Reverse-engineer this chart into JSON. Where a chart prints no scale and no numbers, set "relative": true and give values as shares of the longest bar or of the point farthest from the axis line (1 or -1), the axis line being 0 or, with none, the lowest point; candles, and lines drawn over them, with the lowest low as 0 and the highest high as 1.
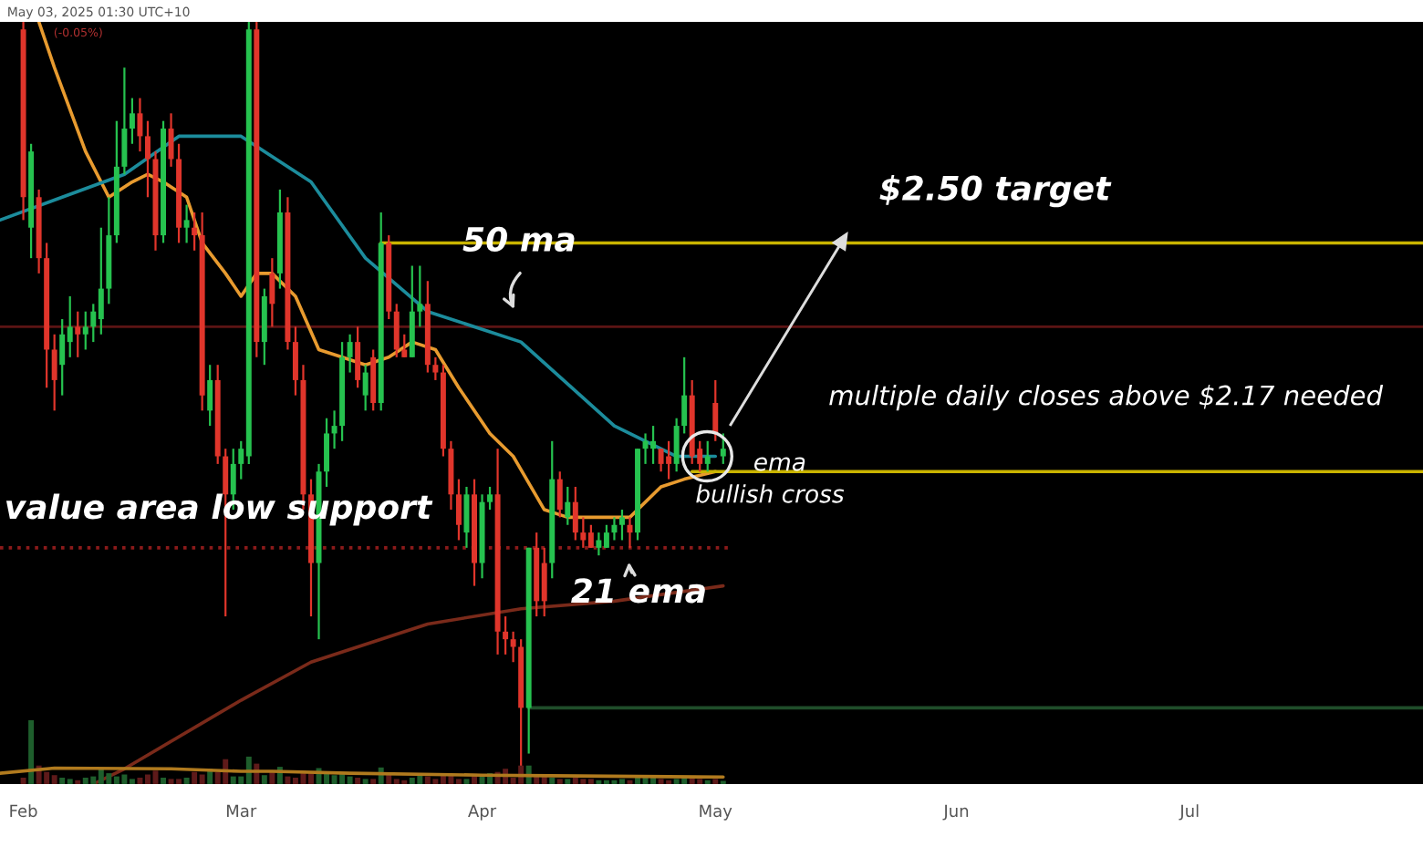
{
  "chart_data": [
    {
      "type": "candlestick",
      "x": [
        "2025-02-01",
        "2025-02-02",
        "2025-02-03",
        "2025-02-04",
        "2025-02-05",
        "2025-02-06",
        "2025-02-07",
        "2025-02-08",
        "2025-02-09",
        "2025-02-10",
        "2025-02-11",
        "2025-02-12",
        "2025-02-13",
        "2025-02-14",
        "2025-02-15",
        "2025-02-16",
        "2025-02-17",
        "2025-02-18",
        "2025-02-19",
        "2025-02-20",
        "2025-02-21",
        "2025-02-22",
        "2025-02-23",
        "2025-02-24",
        "2025-02-25",
        "2025-02-26",
        "2025-02-27",
        "2025-02-28",
        "2025-03-01",
        "2025-03-02",
        "2025-03-03",
        "2025-03-04",
        "2025-03-05",
        "2025-03-06",
        "2025-03-07",
        "2025-03-08",
        "2025-03-09",
        "2025-03-10",
        "2025-03-11",
        "2025-03-12",
        "2025-03-13",
        "2025-03-14",
        "2025-03-15",
        "2025-03-16",
        "2025-03-17",
        "2025-03-18",
        "2025-03-19",
        "2025-03-20",
        "2025-03-21",
        "2025-03-22",
        "2025-03-23",
        "2025-03-24",
        "2025-03-25",
        "2025-03-26",
        "2025-03-27",
        "2025-03-28",
        "2025-03-29",
        "2025-03-30",
        "2025-03-31",
        "2025-04-01",
        "2025-04-02",
        "2025-04-03",
        "2025-04-04",
        "2025-04-05",
        "2025-04-06",
        "2025-04-07",
        "2025-04-08",
        "2025-04-09",
        "2025-04-10",
        "2025-04-11",
        "2025-04-12",
        "2025-04-13",
        "2025-04-14",
        "2025-04-15",
        "2025-04-16",
        "2025-04-17",
        "2025-04-18",
        "2025-04-19",
        "2025-04-20",
        "2025-04-21",
        "2025-04-22",
        "2025-04-23",
        "2025-04-24",
        "2025-04-25",
        "2025-04-26",
        "2025-04-27",
        "2025-04-28",
        "2025-04-29",
        "2025-04-30",
        "2025-05-01",
        "2025-05-02"
      ],
      "relative": true,
      "ohlc": [
        [
          0.99,
          1,
          0.74,
          0.77
        ],
        [
          0.73,
          0.84,
          0.69,
          0.83
        ],
        [
          0.77,
          0.78,
          0.67,
          0.69
        ],
        [
          0.69,
          0.71,
          0.52,
          0.57
        ],
        [
          0.57,
          0.59,
          0.49,
          0.53
        ],
        [
          0.55,
          0.61,
          0.51,
          0.59
        ],
        [
          0.58,
          0.64,
          0.56,
          0.6
        ],
        [
          0.6,
          0.62,
          0.56,
          0.59
        ],
        [
          0.59,
          0.62,
          0.57,
          0.6
        ],
        [
          0.6,
          0.63,
          0.58,
          0.62
        ],
        [
          0.61,
          0.73,
          0.59,
          0.65
        ],
        [
          0.65,
          0.77,
          0.63,
          0.72
        ],
        [
          0.72,
          0.87,
          0.71,
          0.81
        ],
        [
          0.81,
          0.94,
          0.8,
          0.86
        ],
        [
          0.86,
          0.9,
          0.84,
          0.88
        ],
        [
          0.88,
          0.9,
          0.83,
          0.85
        ],
        [
          0.85,
          0.87,
          0.77,
          0.82
        ],
        [
          0.82,
          0.83,
          0.7,
          0.72
        ],
        [
          0.72,
          0.87,
          0.71,
          0.86
        ],
        [
          0.86,
          0.88,
          0.81,
          0.82
        ],
        [
          0.82,
          0.84,
          0.71,
          0.73
        ],
        [
          0.73,
          0.76,
          0.71,
          0.74
        ],
        [
          0.73,
          0.75,
          0.7,
          0.72
        ],
        [
          0.72,
          0.75,
          0.49,
          0.51
        ],
        [
          0.49,
          0.55,
          0.47,
          0.53
        ],
        [
          0.53,
          0.55,
          0.42,
          0.43
        ],
        [
          0.43,
          0.44,
          0.22,
          0.38
        ],
        [
          0.38,
          0.44,
          0.36,
          0.42
        ],
        [
          0.42,
          0.45,
          0.4,
          0.44
        ],
        [
          0.43,
          1,
          0.42,
          0.99
        ],
        [
          0.99,
          1,
          0.56,
          0.58
        ],
        [
          0.58,
          0.65,
          0.55,
          0.64
        ],
        [
          0.67,
          0.69,
          0.6,
          0.63
        ],
        [
          0.67,
          0.78,
          0.65,
          0.75
        ],
        [
          0.75,
          0.77,
          0.57,
          0.58
        ],
        [
          0.58,
          0.6,
          0.51,
          0.53
        ],
        [
          0.53,
          0.55,
          0.36,
          0.38
        ],
        [
          0.38,
          0.4,
          0.22,
          0.29
        ],
        [
          0.29,
          0.42,
          0.19,
          0.41
        ],
        [
          0.41,
          0.48,
          0.39,
          0.46
        ],
        [
          0.46,
          0.49,
          0.44,
          0.47
        ],
        [
          0.47,
          0.58,
          0.45,
          0.56
        ],
        [
          0.56,
          0.59,
          0.54,
          0.58
        ],
        [
          0.58,
          0.6,
          0.52,
          0.53
        ],
        [
          0.51,
          0.55,
          0.49,
          0.54
        ],
        [
          0.56,
          0.57,
          0.49,
          0.5
        ],
        [
          0.5,
          0.75,
          0.49,
          0.71
        ],
        [
          0.71,
          0.72,
          0.61,
          0.62
        ],
        [
          0.62,
          0.63,
          0.56,
          0.57
        ],
        [
          0.57,
          0.59,
          0.56,
          0.56
        ],
        [
          0.56,
          0.68,
          0.56,
          0.62
        ],
        [
          0.62,
          0.68,
          0.6,
          0.63
        ],
        [
          0.63,
          0.66,
          0.54,
          0.55
        ],
        [
          0.55,
          0.56,
          0.53,
          0.54
        ],
        [
          0.54,
          0.55,
          0.43,
          0.44
        ],
        [
          0.44,
          0.45,
          0.36,
          0.38
        ],
        [
          0.38,
          0.4,
          0.32,
          0.34
        ],
        [
          0.33,
          0.39,
          0.31,
          0.38
        ],
        [
          0.38,
          0.4,
          0.26,
          0.29
        ],
        [
          0.29,
          0.38,
          0.27,
          0.37
        ],
        [
          0.37,
          0.39,
          0.36,
          0.38
        ],
        [
          0.38,
          0.44,
          0.17,
          0.2
        ],
        [
          0.2,
          0.22,
          0.17,
          0.19
        ],
        [
          0.19,
          0.2,
          0.16,
          0.18
        ],
        [
          0.18,
          0.19,
          0,
          0.1
        ],
        [
          0.1,
          0.31,
          0.04,
          0.31
        ],
        [
          0.31,
          0.33,
          0.22,
          0.24
        ],
        [
          0.29,
          0.31,
          0.22,
          0.24
        ],
        [
          0.29,
          0.45,
          0.27,
          0.4
        ],
        [
          0.4,
          0.41,
          0.35,
          0.36
        ],
        [
          0.35,
          0.39,
          0.34,
          0.37
        ],
        [
          0.37,
          0.39,
          0.32,
          0.33
        ],
        [
          0.33,
          0.35,
          0.31,
          0.32
        ],
        [
          0.33,
          0.34,
          0.31,
          0.31
        ],
        [
          0.31,
          0.33,
          0.3,
          0.32
        ],
        [
          0.31,
          0.34,
          0.31,
          0.33
        ],
        [
          0.33,
          0.35,
          0.32,
          0.34
        ],
        [
          0.34,
          0.36,
          0.32,
          0.35
        ],
        [
          0.34,
          0.35,
          0.31,
          0.33
        ],
        [
          0.33,
          0.44,
          0.32,
          0.44
        ],
        [
          0.44,
          0.46,
          0.42,
          0.45
        ],
        [
          0.44,
          0.47,
          0.42,
          0.45
        ],
        [
          0.44,
          0.44,
          0.41,
          0.42
        ],
        [
          0.43,
          0.45,
          0.4,
          0.42
        ],
        [
          0.42,
          0.48,
          0.41,
          0.47
        ],
        [
          0.47,
          0.56,
          0.46,
          0.51
        ],
        [
          0.51,
          0.53,
          0.42,
          0.43
        ],
        [
          0.44,
          0.45,
          0.41,
          0.42
        ],
        [
          0.42,
          0.45,
          0.41,
          0.43
        ],
        [
          0.5,
          0.53,
          0.45,
          0.46
        ],
        [
          0.43,
          0.46,
          0.42,
          0.44
        ]
      ],
      "colors": [
        "#e0352b",
        "#26c24f",
        "#e0352b",
        "#e0352b",
        "#e0352b",
        "#26c24f",
        "#26c24f",
        "#e0352b",
        "#26c24f",
        "#26c24f",
        "#26c24f",
        "#26c24f",
        "#26c24f",
        "#26c24f",
        "#26c24f",
        "#e0352b",
        "#e0352b",
        "#e0352b",
        "#26c24f",
        "#e0352b",
        "#e0352b",
        "#26c24f",
        "#e0352b",
        "#e0352b",
        "#26c24f",
        "#e0352b",
        "#e0352b",
        "#26c24f",
        "#26c24f",
        "#26c24f",
        "#e0352b",
        "#26c24f",
        "#e0352b",
        "#26c24f",
        "#e0352b",
        "#e0352b",
        "#e0352b",
        "#e0352b",
        "#26c24f",
        "#26c24f",
        "#26c24f",
        "#26c24f",
        "#26c24f",
        "#e0352b",
        "#26c24f",
        "#e0352b",
        "#26c24f",
        "#e0352b",
        "#e0352b",
        "#e0352b",
        "#26c24f",
        "#26c24f",
        "#e0352b",
        "#e0352b",
        "#e0352b",
        "#e0352b",
        "#e0352b",
        "#26c24f",
        "#e0352b",
        "#26c24f",
        "#26c24f",
        "#e0352b",
        "#e0352b",
        "#e0352b",
        "#e0352b",
        "#26c24f",
        "#e0352b",
        "#e0352b",
        "#26c24f",
        "#e0352b",
        "#26c24f",
        "#e0352b",
        "#e0352b",
        "#e0352b",
        "#26c24f",
        "#26c24f",
        "#26c24f",
        "#26c24f",
        "#e0352b",
        "#26c24f",
        "#26c24f",
        "#26c24f",
        "#e0352b",
        "#e0352b",
        "#26c24f",
        "#26c24f",
        "#e0352b",
        "#e0352b",
        "#26c24f",
        "#e0352b",
        "#26c24f"
      ],
      "series": [
        {
          "type": "line",
          "color": "#e89b2f",
          "x": [
            "2025-02-03",
            "2025-02-05",
            "2025-02-09",
            "2025-02-12",
            "2025-02-15",
            "2025-02-17",
            "2025-02-19",
            "2025-02-22",
            "2025-02-24",
            "2025-02-27",
            "2025-03-01",
            "2025-03-03",
            "2025-03-05",
            "2025-03-08",
            "2025-03-11",
            "2025-03-14",
            "2025-03-17",
            "2025-03-20",
            "2025-03-23",
            "2025-03-26",
            "2025-03-29",
            "2025-04-02",
            "2025-04-05",
            "2025-04-09",
            "2025-04-12",
            "2025-04-17",
            "2025-04-20",
            "2025-04-24",
            "2025-04-27",
            "2025-05-01"
          ],
          "values": [
            1,
            0.94,
            0.83,
            0.77,
            0.79,
            0.8,
            0.79,
            0.77,
            0.71,
            0.67,
            0.64,
            0.67,
            0.67,
            0.64,
            0.57,
            0.56,
            0.55,
            0.56,
            0.58,
            0.57,
            0.52,
            0.46,
            0.43,
            0.36,
            0.35,
            0.35,
            0.35,
            0.39,
            0.4,
            0.41
          ]
        },
        {
          "type": "line",
          "color": "#1c8c9c",
          "x": [
            "2025-01-29",
            "2025-02-06",
            "2025-02-14",
            "2025-02-21",
            "2025-03-01",
            "2025-03-10",
            "2025-03-17",
            "2025-03-25",
            "2025-04-06",
            "2025-04-18",
            "2025-04-26",
            "2025-05-01"
          ],
          "values": [
            0.74,
            0.77,
            0.8,
            0.85,
            0.85,
            0.79,
            0.69,
            0.62,
            0.58,
            0.47,
            0.43,
            0.43
          ]
        },
        {
          "type": "line",
          "color": "#7a2a1a",
          "x": [
            "2025-02-10",
            "2025-02-14",
            "2025-03-01",
            "2025-03-10",
            "2025-03-25",
            "2025-04-06",
            "2025-04-18",
            "2025-05-02"
          ],
          "values": [
            0,
            0.02,
            0.11,
            0.16,
            0.21,
            0.23,
            0.24,
            0.26
          ]
        },
        {
          "type": "line",
          "color": "#c9b400",
          "x": [
            "2025-03-19",
            "2025-07-31"
          ],
          "values": [
            0.71,
            0.71
          ]
        },
        {
          "type": "line",
          "color": "#c9b400",
          "x": [
            "2025-04-28",
            "2025-07-31"
          ],
          "values": [
            0.41,
            0.41
          ]
        },
        {
          "type": "line",
          "color": "#1f4d2a",
          "x": [
            "2025-04-07",
            "2025-07-31"
          ],
          "values": [
            0.1,
            0.1
          ]
        },
        {
          "type": "line",
          "color": "#8b1a1a",
          "line_style": "dotted",
          "x": [
            "2025-01-29",
            "2025-05-03"
          ],
          "values": [
            0.31,
            0.31
          ]
        }
      ],
      "ref_lines": [
        {
          "axis": "y",
          "value": 0.6,
          "color": "#5c1414"
        }
      ],
      "annotations": [
        "May 03, 2025 01:30 UTC+10",
        "(-0.05%)",
        "$2.50 target",
        "50 ma",
        "multiple daily closes above $2.17 needed",
        "ema",
        "bullish cross",
        "value area low support",
        "21 ema"
      ],
      "xlim": [
        "2025-01-29",
        "2025-07-31"
      ],
      "tick_labels": false
    },
    {
      "type": "bar",
      "relative": true,
      "tick_labels": "x",
      "xlim": [
        "2025-01-29",
        "2025-07-31"
      ],
      "xticks": [
        {
          "value": "2025-02-01",
          "label": "Feb"
        },
        {
          "value": "2025-03-01",
          "label": "Mar"
        },
        {
          "value": "2025-04-01",
          "label": "Apr"
        },
        {
          "value": "2025-05-01",
          "label": "May"
        },
        {
          "value": "2025-06-01",
          "label": "Jun"
        },
        {
          "value": "2025-07-01",
          "label": "Jul"
        }
      ],
      "x": [
        "2025-02-01",
        "2025-02-02",
        "2025-02-03",
        "2025-02-04",
        "2025-02-05",
        "2025-02-06",
        "2025-02-07",
        "2025-02-08",
        "2025-02-09",
        "2025-02-10",
        "2025-02-11",
        "2025-02-12",
        "2025-02-13",
        "2025-02-14",
        "2025-02-15",
        "2025-02-16",
        "2025-02-17",
        "2025-02-18",
        "2025-02-19",
        "2025-02-20",
        "2025-02-21",
        "2025-02-22",
        "2025-02-23",
        "2025-02-24",
        "2025-02-25",
        "2025-02-26",
        "2025-02-27",
        "2025-02-28",
        "2025-03-01",
        "2025-03-02",
        "2025-03-03",
        "2025-03-04",
        "2025-03-05",
        "2025-03-06",
        "2025-03-07",
        "2025-03-08",
        "2025-03-09",
        "2025-03-10",
        "2025-03-11",
        "2025-03-12",
        "2025-03-13",
        "2025-03-14",
        "2025-03-15",
        "2025-03-16",
        "2025-03-17",
        "2025-03-18",
        "2025-03-19",
        "2025-03-20",
        "2025-03-21",
        "2025-03-22",
        "2025-03-23",
        "2025-03-24",
        "2025-03-25",
        "2025-03-26",
        "2025-03-27",
        "2025-03-28",
        "2025-03-29",
        "2025-03-30",
        "2025-03-31",
        "2025-04-01",
        "2025-04-02",
        "2025-04-03",
        "2025-04-04",
        "2025-04-05",
        "2025-04-06",
        "2025-04-07",
        "2025-04-08",
        "2025-04-09",
        "2025-04-10",
        "2025-04-11",
        "2025-04-12",
        "2025-04-13",
        "2025-04-14",
        "2025-04-15",
        "2025-04-16",
        "2025-04-17",
        "2025-04-18",
        "2025-04-19",
        "2025-04-20",
        "2025-04-21",
        "2025-04-22",
        "2025-04-23",
        "2025-04-24",
        "2025-04-25",
        "2025-04-26",
        "2025-04-27",
        "2025-04-28",
        "2025-04-29",
        "2025-04-30",
        "2025-05-01",
        "2025-05-02"
      ],
      "values": [
        0.1,
        1,
        0.29,
        0.19,
        0.14,
        0.1,
        0.08,
        0.06,
        0.1,
        0.12,
        0.24,
        0.17,
        0.12,
        0.15,
        0.08,
        0.1,
        0.15,
        0.21,
        0.1,
        0.08,
        0.08,
        0.1,
        0.19,
        0.15,
        0.24,
        0.19,
        0.39,
        0.12,
        0.12,
        0.43,
        0.32,
        0.14,
        0.19,
        0.27,
        0.12,
        0.1,
        0.21,
        0.17,
        0.25,
        0.17,
        0.14,
        0.17,
        0.12,
        0.1,
        0.08,
        0.08,
        0.26,
        0.17,
        0.08,
        0.06,
        0.1,
        0.14,
        0.12,
        0.08,
        0.17,
        0.14,
        0.08,
        0.08,
        0.16,
        0.12,
        0.17,
        0.19,
        0.24,
        0.1,
        0.29,
        0.29,
        0.15,
        0.14,
        0.1,
        0.08,
        0.08,
        0.1,
        0.08,
        0.08,
        0.06,
        0.06,
        0.06,
        0.08,
        0.06,
        0.12,
        0.14,
        0.14,
        0.08,
        0.06,
        0.08,
        0.1,
        0.1,
        0.08,
        0.06,
        0.08,
        0.05
      ],
      "colors": [
        "#5e1a1a",
        "#1e5e2c",
        "#5e1a1a",
        "#5e1a1a",
        "#5e1a1a",
        "#1e5e2c",
        "#1e5e2c",
        "#5e1a1a",
        "#1e5e2c",
        "#1e5e2c",
        "#1e5e2c",
        "#1e5e2c",
        "#1e5e2c",
        "#1e5e2c",
        "#1e5e2c",
        "#5e1a1a",
        "#5e1a1a",
        "#5e1a1a",
        "#1e5e2c",
        "#5e1a1a",
        "#5e1a1a",
        "#1e5e2c",
        "#5e1a1a",
        "#5e1a1a",
        "#1e5e2c",
        "#5e1a1a",
        "#5e1a1a",
        "#1e5e2c",
        "#1e5e2c",
        "#1e5e2c",
        "#5e1a1a",
        "#1e5e2c",
        "#5e1a1a",
        "#1e5e2c",
        "#5e1a1a",
        "#5e1a1a",
        "#5e1a1a",
        "#5e1a1a",
        "#1e5e2c",
        "#1e5e2c",
        "#1e5e2c",
        "#1e5e2c",
        "#1e5e2c",
        "#5e1a1a",
        "#1e5e2c",
        "#5e1a1a",
        "#1e5e2c",
        "#5e1a1a",
        "#5e1a1a",
        "#5e1a1a",
        "#1e5e2c",
        "#1e5e2c",
        "#5e1a1a",
        "#5e1a1a",
        "#5e1a1a",
        "#5e1a1a",
        "#5e1a1a",
        "#1e5e2c",
        "#5e1a1a",
        "#1e5e2c",
        "#1e5e2c",
        "#5e1a1a",
        "#5e1a1a",
        "#5e1a1a",
        "#5e1a1a",
        "#1e5e2c",
        "#5e1a1a",
        "#5e1a1a",
        "#1e5e2c",
        "#5e1a1a",
        "#1e5e2c",
        "#5e1a1a",
        "#5e1a1a",
        "#5e1a1a",
        "#1e5e2c",
        "#1e5e2c",
        "#1e5e2c",
        "#1e5e2c",
        "#5e1a1a",
        "#1e5e2c",
        "#1e5e2c",
        "#1e5e2c",
        "#5e1a1a",
        "#5e1a1a",
        "#1e5e2c",
        "#1e5e2c",
        "#5e1a1a",
        "#5e1a1a",
        "#1e5e2c",
        "#5e1a1a",
        "#1e5e2c"
      ],
      "series": [
        {
          "type": "line",
          "color": "#b07a1e",
          "x": [
            "2025-01-29",
            "2025-02-05",
            "2025-02-20",
            "2025-03-01",
            "2025-03-05",
            "2025-03-15",
            "2025-04-01",
            "2025-04-10",
            "2025-05-02"
          ],
          "values": [
            0.17,
            0.25,
            0.24,
            0.2,
            0.2,
            0.17,
            0.14,
            0.13,
            0.11
          ]
        }
      ]
    }
  ]
}
